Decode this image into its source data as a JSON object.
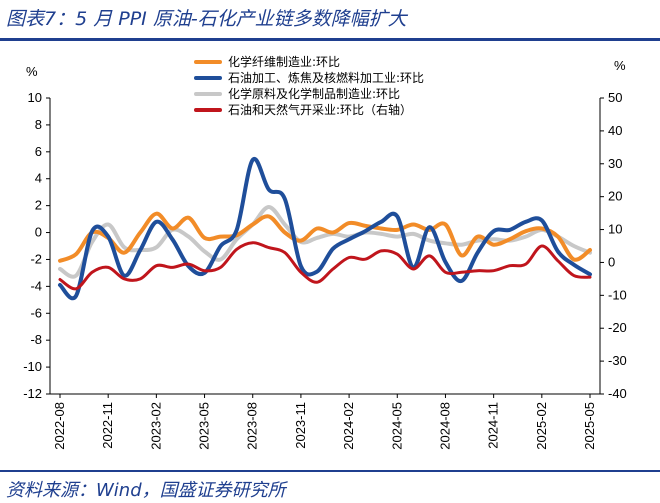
{
  "header": {
    "title": "图表7：5 月 PPI 原油-石化产业链多数降幅扩大"
  },
  "footer": {
    "source": "资料来源：Wind，国盛证券研究所"
  },
  "chart_data": {
    "type": "line",
    "title": "图表7：5 月 PPI 原油-石化产业链多数降幅扩大",
    "ylabel_left": "%",
    "ylabel_right": "%",
    "ylim_left": [
      -12,
      10
    ],
    "ylim_right": [
      -40,
      50
    ],
    "yticks_left": [
      "10",
      "8",
      "6",
      "4",
      "2",
      "0",
      "-2",
      "-4",
      "-6",
      "-8",
      "-10",
      "-12"
    ],
    "yticks_right": [
      "50",
      "40",
      "30",
      "20",
      "10",
      "0",
      "-10",
      "-20",
      "-30",
      "-40"
    ],
    "legend_position": "top-center",
    "x": [
      "2022-08",
      "2022-09",
      "2022-10",
      "2022-11",
      "2022-12",
      "2023-01",
      "2023-02",
      "2023-03",
      "2023-04",
      "2023-05",
      "2023-06",
      "2023-07",
      "2023-08",
      "2023-09",
      "2023-10",
      "2023-11",
      "2023-12",
      "2024-01",
      "2024-02",
      "2024-03",
      "2024-04",
      "2024-05",
      "2024-06",
      "2024-07",
      "2024-08",
      "2024-09",
      "2024-10",
      "2024-11",
      "2024-12",
      "2025-01",
      "2025-02",
      "2025-03",
      "2025-04",
      "2025-05"
    ],
    "xticks": [
      "2022-08",
      "2022-11",
      "2023-02",
      "2023-05",
      "2023-08",
      "2023-11",
      "2024-02",
      "2024-05",
      "2024-08",
      "2024-11",
      "2025-02",
      "2025-05"
    ],
    "series": [
      {
        "name": "化学纤维制造业:环比",
        "color": "#f28c28",
        "axis": "left",
        "values": [
          -2.1,
          -1.6,
          0.0,
          -0.4,
          -1.5,
          0.0,
          1.4,
          0.3,
          1.1,
          -0.4,
          -0.3,
          -0.2,
          0.6,
          1.2,
          0.0,
          -0.6,
          0.3,
          0.0,
          0.7,
          0.5,
          0.3,
          0.2,
          0.6,
          0.2,
          0.6,
          -1.7,
          -0.3,
          -0.9,
          -0.5,
          0.1,
          0.3,
          -0.3,
          -2.0,
          -1.3
        ]
      },
      {
        "name": "石油加工、炼焦及核燃料加工业:环比",
        "color": "#1f4e9a",
        "axis": "left",
        "values": [
          -3.9,
          -4.7,
          0.1,
          -0.3,
          -3.2,
          -1.3,
          0.8,
          -0.5,
          -2.5,
          -3.0,
          -1.0,
          0.2,
          5.4,
          3.2,
          2.5,
          -2.5,
          -2.9,
          -1.2,
          -0.5,
          0.1,
          0.8,
          1.2,
          -2.6,
          0.4,
          -2.2,
          -3.6,
          -1.5,
          0.1,
          0.2,
          0.8,
          0.9,
          -1.4,
          -2.4,
          -3.1
        ]
      },
      {
        "name": "化学原料及化学制品制造业:环比",
        "color": "#c8c8c8",
        "axis": "left",
        "values": [
          -2.7,
          -3.2,
          -0.7,
          0.6,
          -1.1,
          -1.3,
          -1.1,
          0.2,
          -0.3,
          -1.4,
          -2.0,
          -0.5,
          0.6,
          1.9,
          0.6,
          -0.7,
          -0.4,
          -0.1,
          -0.3,
          0.0,
          -0.1,
          -0.3,
          -0.1,
          -0.6,
          -0.8,
          -0.9,
          -0.6,
          -0.5,
          -0.6,
          -0.3,
          0.2,
          -0.3,
          -1.0,
          -1.5
        ]
      },
      {
        "name": "石油和天然气开采业:环比（右轴）",
        "color": "#c0151c",
        "axis": "right",
        "values": [
          -5.2,
          -8.0,
          -3.0,
          -1.5,
          -5.0,
          -5.0,
          -1.0,
          -1.5,
          -0.5,
          -2.5,
          -1.5,
          4.0,
          6.0,
          4.5,
          3.0,
          -3.0,
          -6.0,
          -2.0,
          1.5,
          1.0,
          3.5,
          2.5,
          -2.0,
          2.0,
          -3.0,
          -3.0,
          -2.5,
          -2.5,
          -1.0,
          -0.5,
          5.0,
          0.5,
          -4.0,
          -4.5
        ]
      }
    ]
  }
}
